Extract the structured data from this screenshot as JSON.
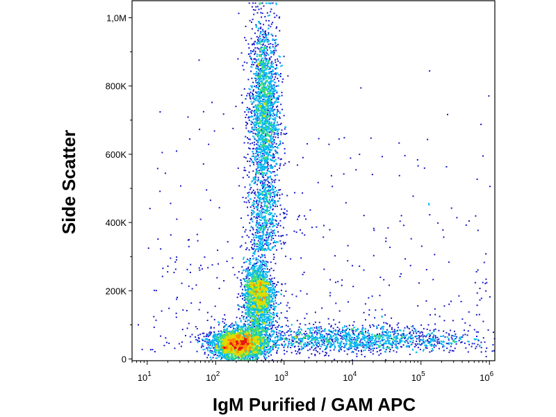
{
  "chart_data": {
    "type": "scatter",
    "subtype": "flow-cytometry-density-dot-plot",
    "xlabel": "IgM Purified / GAM APC",
    "ylabel": "Side Scatter",
    "x_scale": "log",
    "y_scale": "linear",
    "xlim": [
      6,
      1200000
    ],
    "ylim": [
      -5000,
      1050000
    ],
    "x_ticks": [
      {
        "value": 10,
        "base": "10",
        "exp": "1"
      },
      {
        "value": 100,
        "base": "10",
        "exp": "2"
      },
      {
        "value": 1000,
        "base": "10",
        "exp": "3"
      },
      {
        "value": 10000,
        "base": "10",
        "exp": "4"
      },
      {
        "value": 100000,
        "base": "10",
        "exp": "5"
      },
      {
        "value": 1000000,
        "base": "10",
        "exp": "6"
      }
    ],
    "y_ticks": [
      {
        "value": 0,
        "label": "0"
      },
      {
        "value": 200000,
        "label": "200K"
      },
      {
        "value": 400000,
        "label": "400K"
      },
      {
        "value": 600000,
        "label": "600K"
      },
      {
        "value": 800000,
        "label": "800K"
      },
      {
        "value": 1000000,
        "label": "1,0M"
      }
    ],
    "grid": false,
    "legend": "none",
    "color_scale": [
      "#1414c8",
      "#00b4f0",
      "#3cdc78",
      "#dcdc00",
      "#ff8c00",
      "#e61414"
    ],
    "populations": [
      {
        "x_center": 500,
        "y_center": 720000,
        "x_spread_decades": 0.11,
        "y_spread": 140000,
        "relative_density": 0.9
      },
      {
        "x_center": 400,
        "y_center": 200000,
        "x_spread_decades": 0.1,
        "y_spread": 45000,
        "relative_density": 0.75
      },
      {
        "x_center": 220,
        "y_center": 45000,
        "x_spread_decades": 0.2,
        "y_spread": 22000,
        "relative_density": 1.0
      },
      {
        "x_center": 8000,
        "y_center": 60000,
        "x_spread_decades": 0.9,
        "y_spread": 20000,
        "relative_density": 0.45
      }
    ]
  }
}
